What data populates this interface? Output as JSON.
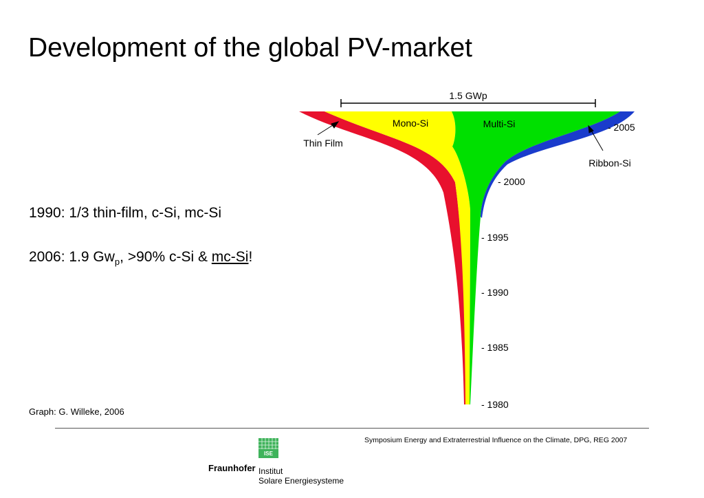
{
  "slide": {
    "title": "Development of the global PV-market",
    "note1": "1990: 1/3 thin-film, c-Si, mc-Si",
    "note2": {
      "lead": "2006:  1.9 Gw",
      "sub": "p",
      "mid": ", >90% c-Si & ",
      "link": "mc-Si",
      "end": "!"
    },
    "credit": "Graph: G. Willeke, 2006",
    "footer": "Symposium Energy and Extraterrestrial Influence on the Climate, DPG, REG 2007",
    "logo": {
      "tile_text": "ISE",
      "brand": "Fraunhofer",
      "institute_line1": "Institut",
      "institute_line2": "Solare Energiesysteme"
    }
  },
  "chart_data": {
    "type": "area",
    "scale_label": "1.5 GWp",
    "year_ticks": [
      "- 1980",
      "- 1985",
      "- 1990",
      "- 1995",
      "- 2000",
      "- 2005"
    ],
    "series": [
      {
        "name": "Thin Film",
        "color": "#e8112d"
      },
      {
        "name": "Mono-Si",
        "color": "#ffff00"
      },
      {
        "name": "Multi-Si",
        "color": "#00e000"
      },
      {
        "name": "Ribbon-Si",
        "color": "#1a3ccc"
      }
    ]
  }
}
